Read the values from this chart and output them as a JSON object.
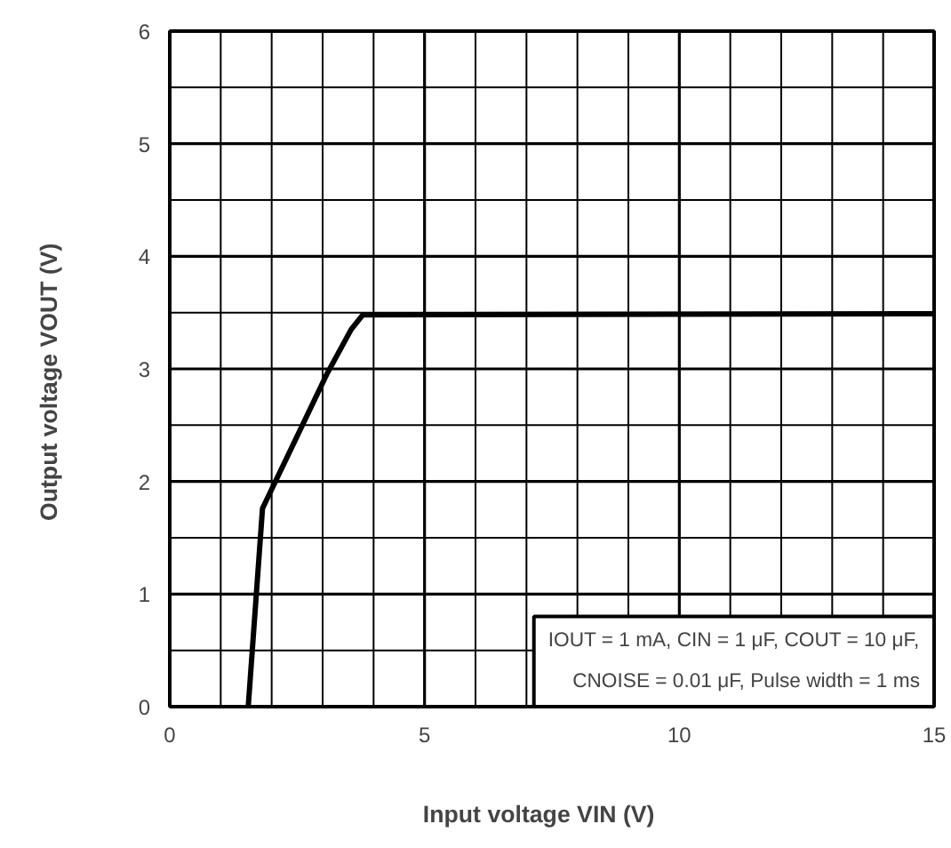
{
  "chart_data": {
    "type": "line",
    "xlabel": "Input voltage   VIN   (V)",
    "ylabel": "Output voltage   VOUT   (V)",
    "x": [
      1.54,
      1.82,
      3.09,
      3.56,
      3.79,
      15
    ],
    "series": [
      {
        "color": "#000000",
        "values": [
          0,
          1.76,
          2.96,
          3.35,
          3.48,
          3.49
        ]
      }
    ],
    "xlim": [
      0,
      15
    ],
    "ylim": [
      0,
      6
    ],
    "xticks": [
      0,
      5,
      10,
      15
    ],
    "yticks": [
      0,
      1,
      2,
      3,
      4,
      5,
      6
    ],
    "grid": true,
    "marker": "none",
    "line_style": "solid",
    "annotations": [
      "IOUT = 1 mA, CIN = 1 μF, COUT = 10 μF,",
      "CNOISE = 0.01 μF, Pulse width = 1 ms"
    ]
  }
}
